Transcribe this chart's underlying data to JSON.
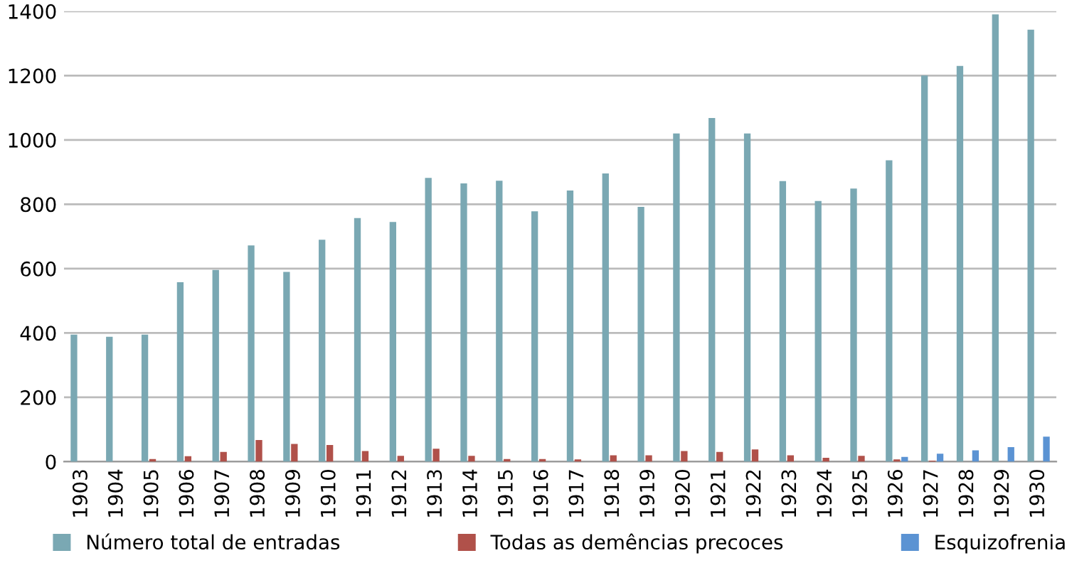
{
  "chart_data": {
    "type": "bar",
    "categories": [
      "1903",
      "1904",
      "1905",
      "1906",
      "1907",
      "1908",
      "1909",
      "1910",
      "1911",
      "1912",
      "1913",
      "1914",
      "1915",
      "1916",
      "1917",
      "1918",
      "1919",
      "1920",
      "1921",
      "1922",
      "1923",
      "1924",
      "1925",
      "1926",
      "1927",
      "1928",
      "1929",
      "1930"
    ],
    "series": [
      {
        "name": "Número total de entradas",
        "color": "#7aa8b3",
        "values": [
          395,
          388,
          395,
          558,
          596,
          672,
          590,
          690,
          757,
          745,
          882,
          865,
          873,
          778,
          843,
          896,
          792,
          1020,
          1068,
          1020,
          872,
          810,
          849,
          937,
          1200,
          1230,
          1390,
          1343
        ]
      },
      {
        "name": "Todas as demências precoces",
        "color": "#b0514a",
        "values": [
          0,
          0,
          8,
          17,
          30,
          67,
          55,
          52,
          33,
          18,
          40,
          18,
          8,
          8,
          7,
          20,
          20,
          33,
          30,
          38,
          20,
          12,
          18,
          7,
          3,
          null,
          null,
          null
        ]
      },
      {
        "name": "Esquizofrenia",
        "color": "#5b93d3",
        "values": [
          null,
          null,
          null,
          null,
          null,
          null,
          null,
          null,
          null,
          null,
          null,
          null,
          null,
          null,
          null,
          null,
          null,
          null,
          null,
          null,
          null,
          null,
          null,
          15,
          25,
          35,
          45,
          78
        ]
      }
    ],
    "ylim": [
      0,
      1400
    ],
    "yticks": [
      0,
      200,
      400,
      600,
      800,
      1000,
      1200,
      1400
    ],
    "grid": "y",
    "legend": "bottom"
  }
}
